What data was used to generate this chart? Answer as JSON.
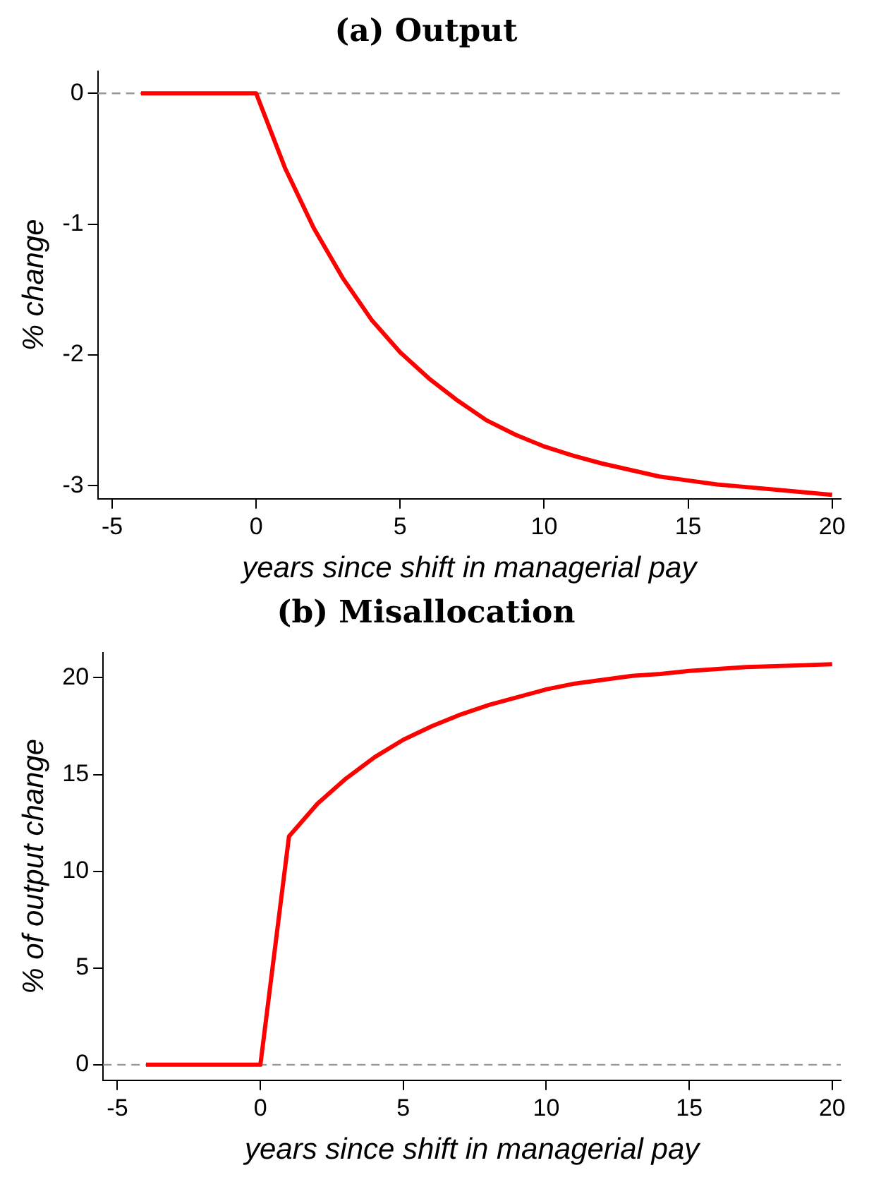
{
  "chart_data": [
    {
      "type": "line",
      "title": "(a) Output",
      "xlabel": "years since shift in managerial pay",
      "ylabel": "% change",
      "x": [
        -4,
        -3,
        -2,
        -1,
        0,
        1,
        2,
        3,
        4,
        5,
        6,
        7,
        8,
        9,
        10,
        11,
        12,
        13,
        14,
        15,
        16,
        17,
        18,
        19,
        20
      ],
      "series": [
        {
          "color": "#ff0000",
          "values": [
            0,
            0,
            0,
            0,
            0,
            -0.57,
            -1.03,
            -1.41,
            -1.73,
            -1.98,
            -2.18,
            -2.35,
            -2.5,
            -2.61,
            -2.7,
            -2.77,
            -2.83,
            -2.88,
            -2.93,
            -2.96,
            -2.99,
            -3.01,
            -3.03,
            -3.05,
            -3.07
          ]
        }
      ],
      "xlim": [
        -5.5,
        20.3
      ],
      "xticks": [
        -5,
        0,
        5,
        10,
        15,
        20
      ],
      "ylim": [
        -3.1,
        0.17
      ],
      "yticks": [
        -3,
        -2,
        -1,
        0
      ],
      "grid": false,
      "legend": false,
      "marker": "none",
      "line_style": "solid",
      "ref_lines": [
        {
          "axis": "y",
          "value": 0,
          "color": "#999999",
          "line_style": "dashed"
        }
      ]
    },
    {
      "type": "line",
      "title": "(b) Misallocation",
      "xlabel": "years since shift in managerial pay",
      "ylabel": "% of output change",
      "x": [
        -4,
        -3,
        -2,
        -1,
        0,
        1,
        2,
        3,
        4,
        5,
        6,
        7,
        8,
        9,
        10,
        11,
        12,
        13,
        14,
        15,
        16,
        17,
        18,
        19,
        20
      ],
      "series": [
        {
          "color": "#ff0000",
          "values": [
            0,
            0,
            0,
            0,
            0,
            11.8,
            13.5,
            14.8,
            15.9,
            16.8,
            17.5,
            18.1,
            18.6,
            19.0,
            19.4,
            19.7,
            19.9,
            20.1,
            20.2,
            20.35,
            20.45,
            20.55,
            20.6,
            20.65,
            20.7
          ]
        }
      ],
      "xlim": [
        -5.5,
        20.3
      ],
      "xticks": [
        -5,
        0,
        5,
        10,
        15,
        20
      ],
      "ylim": [
        -0.8,
        21.3
      ],
      "yticks": [
        0,
        5,
        10,
        15,
        20
      ],
      "grid": false,
      "legend": false,
      "marker": "none",
      "line_style": "solid",
      "ref_lines": [
        {
          "axis": "y",
          "value": 0,
          "color": "#999999",
          "line_style": "dashed"
        }
      ]
    }
  ]
}
